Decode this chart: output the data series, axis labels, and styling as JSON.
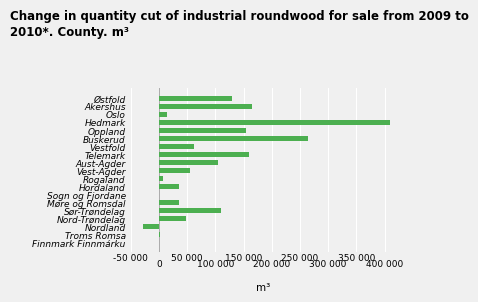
{
  "title": "Change in quantity cut of industrial roundwood for sale from 2009 to\n2010*. County. m³",
  "categories": [
    "Østfold",
    "Akershus",
    "Oslo",
    "Hedmark",
    "Oppland",
    "Buskerud",
    "Vestfold",
    "Telemark",
    "Aust-Agder",
    "Vest-Agder",
    "Rogaland",
    "Hordaland",
    "Sogn og Fjordane",
    "Møre og Romsdal",
    "Sør-Trøndelag",
    "Nord-Trøndelag",
    "Nordland",
    "Troms Romsa",
    "Finnmark Finnmárku"
  ],
  "values": [
    130000,
    165000,
    15000,
    410000,
    155000,
    265000,
    62000,
    160000,
    105000,
    55000,
    8000,
    35000,
    0,
    35000,
    110000,
    48000,
    -28000,
    2000,
    0
  ],
  "bar_color": "#4caf50",
  "xlabel": "m³",
  "xlim": [
    -50000,
    420000
  ],
  "xticks_odd": [
    -50000,
    50000,
    150000,
    250000,
    350000
  ],
  "xticks_even": [
    0,
    100000,
    200000,
    300000,
    400000
  ],
  "xticklabels_odd": [
    "-50 000",
    "50 000",
    "150 000",
    "250 000",
    "350 000"
  ],
  "xticklabels_even": [
    "0",
    "100 000",
    "200 000",
    "300 000",
    "400 000"
  ],
  "background_color": "#f0f0f0",
  "grid_color": "#ffffff",
  "title_fontsize": 8.5,
  "label_fontsize": 7.5,
  "tick_fontsize": 6.5
}
